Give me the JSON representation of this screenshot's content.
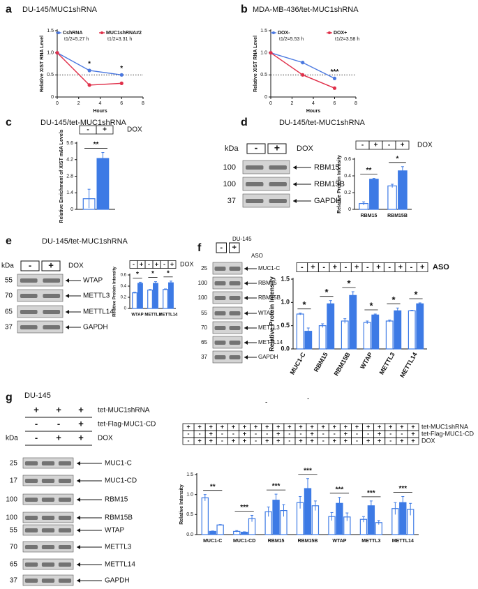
{
  "chart_data": [
    {
      "type": "line",
      "panel": "a",
      "title": "DU-145/MUC1shRNA",
      "x_label": "Hours",
      "y_label": "Relative XIST RNA Level",
      "x": [
        0,
        3,
        6
      ],
      "xlim": [
        0,
        8
      ],
      "xticks": [
        0,
        2,
        4,
        6,
        8
      ],
      "ylim": [
        0,
        1.5
      ],
      "yticks": [
        0,
        0.5,
        {
          "value": 1,
          "label": "1.0"
        },
        1.5
      ],
      "hline": 0.5,
      "series": [
        {
          "name": "CshRNA",
          "color": "#4a78e0",
          "half_life": "t1/2=5.27 h",
          "values": [
            1.0,
            0.6,
            0.5
          ]
        },
        {
          "name": "MUC1shRNA#2",
          "color": "#e0304a",
          "half_life": "t1/2=3.31 h",
          "values": [
            1.0,
            0.27,
            0.31
          ]
        }
      ],
      "significance": [
        {
          "x": 3,
          "label": "*"
        },
        {
          "x": 6,
          "label": "*"
        }
      ]
    },
    {
      "type": "line",
      "panel": "b",
      "title": "MDA-MB-436/tet-MUC1shRNA",
      "x_label": "Hours",
      "y_label": "Relative XIST RNA Level",
      "x": [
        0,
        3,
        6
      ],
      "xlim": [
        0,
        8
      ],
      "xticks": [
        0,
        2,
        4,
        6,
        8
      ],
      "ylim": [
        0,
        1.5
      ],
      "yticks": [
        0,
        0.5,
        {
          "value": 1,
          "label": "1.0"
        },
        1.5
      ],
      "hline": 0.5,
      "series": [
        {
          "name": "DOX-",
          "color": "#4a78e0",
          "half_life": "t1/2=5.53 h",
          "values": [
            1.0,
            0.78,
            0.42
          ]
        },
        {
          "name": "DOX+",
          "color": "#e0304a",
          "half_life": "t1/2=3.58 h",
          "values": [
            1.0,
            0.5,
            0.2
          ]
        }
      ],
      "significance": [
        {
          "x": 6,
          "label": "***"
        }
      ]
    },
    {
      "type": "bar",
      "panel": "c",
      "title": "DU-145/tet-MUC1shRNA",
      "y_label": "Relative Enrichment of XIST m6A Levels",
      "conditions": [
        {
          "label": "DOX",
          "cells": [
            "-",
            "+"
          ]
        }
      ],
      "categories": [
        null
      ],
      "ylim": [
        0,
        5.6
      ],
      "yticks": [
        0,
        1.4,
        2.8,
        4.2,
        5.6
      ],
      "series": [
        {
          "color": "#3d7ae5",
          "fill": "#ffffff",
          "values": [
            0.9
          ],
          "errors": [
            0.8
          ]
        },
        {
          "color": "#3d7ae5",
          "fill": "#3d7ae5",
          "values": [
            4.3
          ],
          "errors": [
            0.5
          ]
        }
      ],
      "significance": [
        "**"
      ]
    },
    {
      "type": "bar",
      "y_label": "Relative Protein Intensity",
      "conditions": [
        {
          "label": "DOX",
          "cells": [
            "-",
            "+",
            "-",
            "+"
          ]
        }
      ],
      "categories": [
        "RBM15",
        "RBM15B"
      ],
      "ylim": [
        0,
        0.6
      ],
      "yticks": [
        0,
        0.2,
        0.4,
        0.6
      ],
      "series": [
        {
          "color": "#3d7ae5",
          "fill": "#ffffff",
          "values": [
            0.07,
            0.28
          ],
          "errors": [
            0.02,
            0.02
          ]
        },
        {
          "color": "#3d7ae5",
          "fill": "#3d7ae5",
          "values": [
            0.36,
            0.46
          ],
          "errors": [
            0.01,
            0.05
          ]
        }
      ],
      "significance": [
        "**",
        "*"
      ]
    },
    {
      "type": "bar",
      "y_label": "Relative Protein Intensity",
      "conditions": [
        {
          "label": "DOX",
          "cells": [
            "-",
            "+",
            "-",
            "+",
            "-",
            "+"
          ]
        }
      ],
      "categories": [
        "WTAP",
        "METTL3",
        "METTL14"
      ],
      "ylim": [
        0,
        0.6
      ],
      "yticks": [
        0,
        0.2,
        0.4,
        0.6
      ],
      "series": [
        {
          "color": "#3d7ae5",
          "fill": "#ffffff",
          "values": [
            0.28,
            0.33,
            0.34
          ],
          "errors": [
            0.01,
            0.01,
            0.01
          ]
        },
        {
          "color": "#3d7ae5",
          "fill": "#3d7ae5",
          "values": [
            0.45,
            0.45,
            0.46
          ],
          "errors": [
            0.02,
            0.03,
            0.03
          ]
        }
      ],
      "significance": [
        "*",
        "*",
        "*"
      ]
    },
    {
      "type": "bar",
      "y_label": "Relative Protein Intensity",
      "conditions": [
        {
          "label": "ASO",
          "cells": [
            "-",
            "+",
            "-",
            "+",
            "-",
            "+",
            "-",
            "+",
            "-",
            "+",
            "-",
            "+"
          ]
        }
      ],
      "categories": [
        "MUC1-C",
        "RBM15",
        "RBM15B",
        "WTAP",
        "METTL3",
        "METTL14"
      ],
      "ylim": [
        0,
        1.5
      ],
      "yticks": [
        {
          "value": 0,
          "label": "0.0"
        },
        0.5,
        {
          "value": 1,
          "label": "1.0"
        },
        1.5
      ],
      "series": [
        {
          "color": "#3d7ae5",
          "fill": "#ffffff",
          "values": [
            0.75,
            0.5,
            0.6,
            0.57,
            0.6,
            0.82
          ],
          "errors": [
            0.02,
            0.04,
            0.05,
            0.03,
            0.02,
            0.01
          ]
        },
        {
          "color": "#3d7ae5",
          "fill": "#3d7ae5",
          "values": [
            0.38,
            0.97,
            1.15,
            0.73,
            0.82,
            0.97
          ],
          "errors": [
            0.07,
            0.07,
            0.08,
            0.02,
            0.06,
            0.02
          ]
        }
      ],
      "significance": [
        "*",
        "*",
        "*",
        "*",
        "*",
        "*"
      ]
    },
    {
      "type": "bar",
      "y_label": "Relative Intensity",
      "conditions": [
        {
          "label": "tet-MUC1shRNA",
          "cells": [
            "+",
            "+",
            "+",
            "+",
            "+",
            "+",
            "+",
            "+",
            "+",
            "+",
            "+",
            "+",
            "+",
            "+",
            "+",
            "+",
            "+",
            "+",
            "+",
            "+",
            "+"
          ]
        },
        {
          "label": "tet-Flag-MUC1-CD",
          "cells": [
            "-",
            "-",
            "+",
            "-",
            "-",
            "+",
            "-",
            "-",
            "+",
            "-",
            "-",
            "+",
            "-",
            "-",
            "+",
            "-",
            "-",
            "+",
            "-",
            "-",
            "+"
          ]
        },
        {
          "label": "DOX",
          "cells": [
            "-",
            "+",
            "+",
            "-",
            "+",
            "+",
            "-",
            "+",
            "+",
            "-",
            "+",
            "+",
            "-",
            "+",
            "+",
            "-",
            "+",
            "+",
            "-",
            "+",
            "+"
          ]
        }
      ],
      "categories": [
        "MUC1-C",
        "MUC1-CD",
        "RBM15",
        "RBM15B",
        "WTAP",
        "METTL3",
        "METTL14"
      ],
      "ylim": [
        0,
        1.5
      ],
      "yticks": [
        {
          "value": 0,
          "label": "0.0"
        },
        0.5,
        {
          "value": 1,
          "label": "1.0"
        },
        1.5
      ],
      "series": [
        {
          "color": "#3d7ae5",
          "fill": "#ffffff",
          "values": [
            0.92,
            0.08,
            0.57,
            0.8,
            0.45,
            0.38,
            0.65
          ],
          "errors": [
            0.08,
            0.02,
            0.12,
            0.15,
            0.1,
            0.07,
            0.15
          ]
        },
        {
          "color": "#3d7ae5",
          "fill": "#3d7ae5",
          "values": [
            0.08,
            0.06,
            0.86,
            1.15,
            0.78,
            0.72,
            0.8
          ],
          "errors": [
            0.01,
            0.01,
            0.15,
            0.25,
            0.15,
            0.12,
            0.15
          ]
        },
        {
          "color": "#3d7ae5",
          "fill": "#ffffff",
          "values": [
            0.24,
            0.4,
            0.6,
            0.72,
            0.44,
            0.3,
            0.63
          ],
          "errors": [
            0.01,
            0.08,
            0.15,
            0.12,
            0.1,
            0.05,
            0.15
          ]
        }
      ],
      "significance": [
        "**",
        "***",
        "***",
        "***",
        "***",
        "***",
        "***"
      ]
    }
  ],
  "blots": [
    {
      "panel": "d",
      "title": "DU-145/tet-MUC1shRNA",
      "kda_label": "kDa",
      "conditions": [
        {
          "label": "DOX",
          "cells": [
            "-",
            "+"
          ]
        }
      ],
      "rows": [
        {
          "kda": 100,
          "label": "RBM15"
        },
        {
          "kda": 100,
          "label": "RBM15B"
        },
        {
          "kda": 37,
          "label": "GAPDH"
        }
      ]
    },
    {
      "panel": "e",
      "title": "DU-145/tet-MUC1shRNA",
      "kda_label": "kDa",
      "conditions": [
        {
          "label": "DOX",
          "cells": [
            "-",
            "+"
          ]
        }
      ],
      "rows": [
        {
          "kda": 55,
          "label": "WTAP"
        },
        {
          "kda": 70,
          "label": "METTL3"
        },
        {
          "kda": 65,
          "label": "METTL14"
        },
        {
          "kda": 37,
          "label": "GAPDH"
        }
      ]
    },
    {
      "panel": "f",
      "title": "DU-145",
      "conditions": [
        {
          "label": "ASO",
          "cells": [
            "-",
            "+"
          ]
        }
      ],
      "rows": [
        {
          "kda": 25,
          "label": "MUC1-C"
        },
        {
          "kda": 100,
          "label": "RBM15"
        },
        {
          "kda": 100,
          "label": "RBM15B"
        },
        {
          "kda": 55,
          "label": "WTAP"
        },
        {
          "kda": 70,
          "label": "METTL3"
        },
        {
          "kda": 65,
          "label": "METTL14"
        },
        {
          "kda": 37,
          "label": "GAPDH"
        }
      ]
    },
    {
      "panel": "g",
      "title": "DU-145",
      "kda_label": "kDa",
      "conditions": [
        {
          "label": "tet-MUC1shRNA",
          "cells": [
            "+",
            "+",
            "+"
          ]
        },
        {
          "label": "tet-Flag-MUC1-CD",
          "cells": [
            "-",
            "-",
            "+"
          ]
        },
        {
          "label": "DOX",
          "cells": [
            "-",
            "+",
            "+"
          ]
        }
      ],
      "rows": [
        {
          "kda": 25,
          "label": "MUC1-C"
        },
        {
          "kda": 17,
          "label": "MUC1-CD"
        },
        {
          "kda": 100,
          "label": "RBM15"
        },
        {
          "kda": 100,
          "label": "RBM15B"
        },
        {
          "kda": 55,
          "label": "WTAP"
        },
        {
          "kda": 70,
          "label": "METTL3"
        },
        {
          "kda": 65,
          "label": "METTL14"
        },
        {
          "kda": 37,
          "label": "GAPDH"
        }
      ]
    }
  ],
  "misc_text": [
    "-",
    "-"
  ]
}
